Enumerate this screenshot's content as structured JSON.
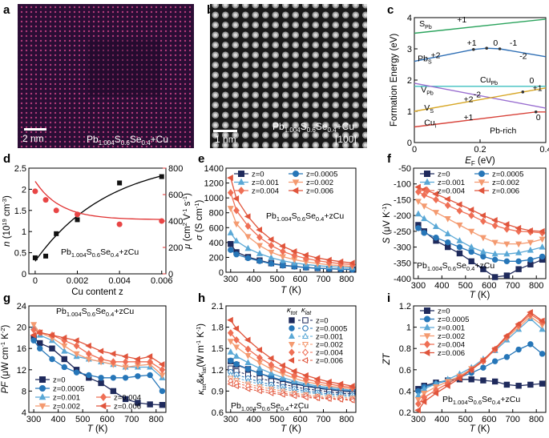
{
  "figure_panels": [
    "a",
    "b",
    "c",
    "d",
    "e",
    "f",
    "g",
    "h",
    "i"
  ],
  "images": {
    "a": {
      "formula_main": "Pb",
      "sub1": "1.004",
      "s": "S",
      "sub2": "0.6",
      "se": "Se",
      "sub3": "0.4",
      "suffix": "+Cu",
      "scale": "2 nm"
    },
    "b": {
      "formula_main": "Pb",
      "sub1": "1.004",
      "s": "S",
      "sub2": "0.6",
      "se": "Se",
      "sub3": "0.4",
      "suffix": "+Cu",
      "direction": "[100]",
      "scale": "1 nm"
    }
  },
  "series_colors": [
    "#1f2a5c",
    "#2676b8",
    "#5aa8d6",
    "#f49a70",
    "#ef6f55",
    "#e0553c"
  ],
  "series_names": [
    "z=0",
    "z=0.0005",
    "z=0.001",
    "z=0.002",
    "z=0.004",
    "z=0.006"
  ],
  "legend_headers": {
    "kappa_tot": "κtot",
    "kappa_lat": "κlat"
  },
  "compound_label": "Pb1.004S0.6Se0.4+zCu",
  "chart_data": [
    {
      "panel": "c",
      "type": "line",
      "title": "",
      "xlabel": "EF (eV)",
      "ylabel": "Formation Energy (eV)",
      "xlim": [
        0,
        0.4
      ],
      "ylim": [
        0,
        4
      ],
      "xticks": [
        0,
        0.2,
        0.4
      ],
      "yticks": [
        0,
        1,
        2,
        3,
        4
      ],
      "annotation": "Pb-rich",
      "series": [
        {
          "name": "SPb",
          "color": "#2aa35c",
          "x": [
            0,
            0.4
          ],
          "y": [
            3.5,
            3.95
          ],
          "charges": [
            "+1"
          ]
        },
        {
          "name": "PbS",
          "color": "#2f6fb5",
          "x": [
            0,
            0.18,
            0.22,
            0.26,
            0.4
          ],
          "y": [
            2.6,
            2.98,
            3.02,
            3.0,
            2.75
          ],
          "charges": [
            "+2",
            "+1",
            "0",
            "-1",
            "-2"
          ]
        },
        {
          "name": "CuPb",
          "color": "#3fc0c0",
          "x": [
            0,
            0.4
          ],
          "y": [
            1.8,
            1.8
          ],
          "charges": [
            "0"
          ]
        },
        {
          "name": "VPb",
          "color": "#9a6fd0",
          "x": [
            0,
            0.4
          ],
          "y": [
            1.9,
            1.1
          ],
          "charges": [
            "-2"
          ]
        },
        {
          "name": "VS",
          "color": "#d8a829",
          "x": [
            0,
            0.4
          ],
          "y": [
            1.0,
            1.75
          ],
          "charges": [
            "+2",
            "+1"
          ]
        },
        {
          "name": "Cui",
          "color": "#d8433a",
          "x": [
            0,
            0.37,
            0.4
          ],
          "y": [
            0.5,
            0.98,
            0.98
          ],
          "charges": [
            "+1",
            "0"
          ]
        }
      ]
    },
    {
      "panel": "d",
      "type": "scatter",
      "xlabel": "Cu content z",
      "ylabel": "n (10^19 cm^-3)",
      "ylabel_right": "μ (cm^2 V^-1 s^-1)",
      "xlim": [
        -0.0003,
        0.0062
      ],
      "ylim": [
        0,
        2.5
      ],
      "ylim_right": [
        0,
        800
      ],
      "xticks": [
        0,
        0.002,
        0.004,
        0.006
      ],
      "yticks": [
        0,
        0.5,
        1.0,
        1.5,
        2.0,
        2.5
      ],
      "yticks_right": [
        0,
        200,
        400,
        600,
        800
      ],
      "x": [
        0,
        0.0005,
        0.001,
        0.002,
        0.004,
        0.006
      ],
      "n": [
        0.38,
        0.42,
        0.95,
        1.28,
        2.15,
        2.3
      ],
      "mu": [
        625,
        560,
        480,
        450,
        375,
        400
      ]
    },
    {
      "panel": "e",
      "type": "line",
      "xlabel": "T (K)",
      "ylabel": "σ (S cm^-1)",
      "xlim": [
        280,
        840
      ],
      "ylim": [
        0,
        1400
      ],
      "xticks": [
        300,
        400,
        500,
        600,
        700,
        800
      ],
      "yticks": [
        0,
        200,
        400,
        600,
        800,
        1000,
        1200,
        1400
      ],
      "x": [
        300,
        325,
        375,
        425,
        475,
        525,
        575,
        625,
        675,
        725,
        775,
        825
      ],
      "series": [
        {
          "name": "z=0",
          "values": [
            380,
            270,
            205,
            160,
            120,
            95,
            80,
            65,
            55,
            48,
            42,
            38
          ]
        },
        {
          "name": "z=0.0005",
          "values": [
            300,
            240,
            190,
            150,
            115,
            90,
            75,
            62,
            53,
            46,
            40,
            36
          ]
        },
        {
          "name": "z=0.001",
          "values": [
            530,
            420,
            320,
            250,
            195,
            155,
            125,
            105,
            88,
            76,
            67,
            60
          ]
        },
        {
          "name": "z=0.002",
          "values": [
            860,
            650,
            480,
            360,
            270,
            210,
            170,
            140,
            118,
            100,
            88,
            78
          ]
        },
        {
          "name": "z=0.004",
          "values": [
            1070,
            830,
            620,
            470,
            360,
            280,
            225,
            185,
            155,
            132,
            115,
            102
          ]
        },
        {
          "name": "z=0.006",
          "values": [
            1270,
            990,
            750,
            570,
            440,
            350,
            280,
            230,
            192,
            165,
            142,
            125
          ]
        }
      ]
    },
    {
      "panel": "f",
      "type": "line",
      "xlabel": "T (K)",
      "ylabel": "S (μV K^-1)",
      "xlim": [
        280,
        840
      ],
      "ylim": [
        -400,
        -50
      ],
      "xticks": [
        300,
        400,
        500,
        600,
        700,
        800
      ],
      "yticks": [
        -400,
        -350,
        -300,
        -250,
        -200,
        -150,
        -100,
        -50
      ],
      "x": [
        300,
        325,
        375,
        425,
        475,
        525,
        575,
        625,
        675,
        725,
        775,
        825
      ],
      "series": [
        {
          "name": "z=0",
          "values": [
            -230,
            -250,
            -280,
            -300,
            -320,
            -345,
            -370,
            -395,
            -390,
            -370,
            -355,
            -340
          ]
        },
        {
          "name": "z=0.0005",
          "values": [
            -240,
            -255,
            -270,
            -285,
            -300,
            -315,
            -330,
            -340,
            -345,
            -345,
            -340,
            -330
          ]
        },
        {
          "name": "z=0.001",
          "values": [
            -195,
            -210,
            -235,
            -258,
            -280,
            -300,
            -315,
            -322,
            -322,
            -318,
            -310,
            -300
          ]
        },
        {
          "name": "z=0.002",
          "values": [
            -155,
            -170,
            -190,
            -210,
            -230,
            -250,
            -270,
            -285,
            -290,
            -290,
            -285,
            -275
          ]
        },
        {
          "name": "z=0.004",
          "values": [
            -125,
            -135,
            -150,
            -168,
            -185,
            -200,
            -218,
            -232,
            -243,
            -250,
            -252,
            -255
          ]
        },
        {
          "name": "z=0.006",
          "values": [
            -110,
            -118,
            -132,
            -148,
            -165,
            -182,
            -200,
            -215,
            -228,
            -240,
            -248,
            -250
          ]
        }
      ]
    },
    {
      "panel": "g",
      "type": "line",
      "xlabel": "T (K)",
      "ylabel": "PF (μW cm^-1 K^-2)",
      "xlim": [
        280,
        840
      ],
      "ylim": [
        4,
        24
      ],
      "xticks": [
        300,
        400,
        500,
        600,
        700,
        800
      ],
      "yticks": [
        4,
        8,
        12,
        16,
        20,
        24
      ],
      "x": [
        300,
        325,
        375,
        425,
        475,
        525,
        575,
        625,
        675,
        725,
        775,
        825
      ],
      "series": [
        {
          "name": "z=0",
          "values": [
            18.0,
            17.0,
            16.0,
            14.0,
            12.0,
            10.5,
            9.5,
            8.0,
            6.5,
            5.8,
            5.5,
            5.4
          ]
        },
        {
          "name": "z=0.0005",
          "values": [
            17.5,
            16.0,
            14.0,
            12.5,
            11.5,
            11.0,
            10.5,
            10.5,
            10.5,
            10.8,
            11.0,
            8.0
          ]
        },
        {
          "name": "z=0.001",
          "values": [
            20.0,
            18.5,
            17.5,
            15.5,
            14.5,
            14.0,
            13.5,
            13.0,
            12.5,
            12.5,
            12.5,
            10.5
          ]
        },
        {
          "name": "z=0.002",
          "values": [
            20.5,
            19.0,
            18.0,
            16.5,
            15.0,
            14.0,
            13.5,
            13.0,
            12.5,
            12.8,
            13.0,
            11.0
          ]
        },
        {
          "name": "z=0.004",
          "values": [
            19.5,
            19.0,
            18.5,
            17.5,
            16.5,
            15.0,
            14.0,
            13.5,
            13.5,
            13.5,
            13.5,
            12.0
          ]
        },
        {
          "name": "z=0.006",
          "values": [
            18.5,
            19.0,
            18.5,
            18.0,
            17.5,
            16.5,
            15.5,
            15.0,
            14.5,
            14.0,
            14.5,
            13.0
          ]
        }
      ]
    },
    {
      "panel": "h",
      "type": "line",
      "xlabel": "T (K)",
      "ylabel": "κtot & κlat (W m^-1 K^-1)",
      "xlim": [
        280,
        840
      ],
      "ylim": [
        0.6,
        2.1
      ],
      "xticks": [
        300,
        400,
        500,
        600,
        700,
        800
      ],
      "yticks": [
        0.6,
        0.9,
        1.2,
        1.5,
        1.8,
        2.1
      ],
      "x": [
        300,
        325,
        375,
        425,
        475,
        525,
        575,
        625,
        675,
        725,
        775,
        825
      ],
      "series_tot": [
        {
          "name": "z=0",
          "values": [
            1.32,
            1.27,
            1.21,
            1.15,
            1.09,
            1.04,
            1.0,
            0.97,
            0.94,
            0.92,
            0.9,
            0.89
          ]
        },
        {
          "name": "z=0.0005",
          "values": [
            1.33,
            1.28,
            1.21,
            1.15,
            1.1,
            1.05,
            1.01,
            0.98,
            0.95,
            0.93,
            0.91,
            0.9
          ]
        },
        {
          "name": "z=0.001",
          "values": [
            1.45,
            1.39,
            1.3,
            1.22,
            1.15,
            1.09,
            1.04,
            1.0,
            0.97,
            0.95,
            0.93,
            0.91
          ]
        },
        {
          "name": "z=0.002",
          "values": [
            1.6,
            1.52,
            1.4,
            1.3,
            1.21,
            1.14,
            1.08,
            1.03,
            1.0,
            0.97,
            0.95,
            0.93
          ]
        },
        {
          "name": "z=0.004",
          "values": [
            1.72,
            1.62,
            1.49,
            1.37,
            1.27,
            1.19,
            1.12,
            1.07,
            1.03,
            1.0,
            0.97,
            0.95
          ]
        },
        {
          "name": "z=0.006",
          "values": [
            1.9,
            1.78,
            1.62,
            1.48,
            1.36,
            1.26,
            1.18,
            1.12,
            1.07,
            1.03,
            1.0,
            0.97
          ]
        }
      ],
      "series_lat": [
        {
          "name": "z=0",
          "values": [
            1.22,
            1.18,
            1.13,
            1.08,
            1.04,
            1.0,
            0.96,
            0.93,
            0.91,
            0.89,
            0.87,
            0.86
          ]
        },
        {
          "name": "z=0.0005",
          "values": [
            1.17,
            1.13,
            1.08,
            1.03,
            0.99,
            0.96,
            0.93,
            0.9,
            0.88,
            0.86,
            0.85,
            0.84
          ]
        },
        {
          "name": "z=0.001",
          "values": [
            1.13,
            1.09,
            1.04,
            1.0,
            0.96,
            0.93,
            0.9,
            0.88,
            0.86,
            0.84,
            0.83,
            0.82
          ]
        },
        {
          "name": "z=0.002",
          "values": [
            1.08,
            1.05,
            1.0,
            0.96,
            0.93,
            0.9,
            0.87,
            0.85,
            0.83,
            0.82,
            0.81,
            0.8
          ]
        },
        {
          "name": "z=0.004",
          "values": [
            1.04,
            1.01,
            0.97,
            0.93,
            0.9,
            0.87,
            0.85,
            0.83,
            0.81,
            0.8,
            0.79,
            0.78
          ]
        },
        {
          "name": "z=0.006",
          "values": [
            1.0,
            0.97,
            0.93,
            0.9,
            0.87,
            0.85,
            0.83,
            0.81,
            0.8,
            0.79,
            0.78,
            0.77
          ]
        }
      ]
    },
    {
      "panel": "i",
      "type": "line",
      "xlabel": "T (K)",
      "ylabel": "ZT",
      "xlim": [
        280,
        840
      ],
      "ylim": [
        0.2,
        1.2
      ],
      "xticks": [
        300,
        400,
        500,
        600,
        700,
        800
      ],
      "yticks": [
        0.2,
        0.4,
        0.6,
        0.8,
        1.0,
        1.2
      ],
      "x": [
        300,
        325,
        375,
        425,
        475,
        525,
        575,
        625,
        675,
        725,
        775,
        825
      ],
      "series": [
        {
          "name": "z=0",
          "values": [
            0.42,
            0.45,
            0.48,
            0.5,
            0.51,
            0.51,
            0.5,
            0.49,
            0.46,
            0.45,
            0.46,
            0.47
          ]
        },
        {
          "name": "z=0.0005",
          "values": [
            0.4,
            0.44,
            0.47,
            0.5,
            0.53,
            0.57,
            0.62,
            0.68,
            0.72,
            0.79,
            0.84,
            0.75
          ]
        },
        {
          "name": "z=0.001",
          "values": [
            0.36,
            0.42,
            0.47,
            0.51,
            0.56,
            0.62,
            0.7,
            0.78,
            0.88,
            0.98,
            1.08,
            0.98
          ]
        },
        {
          "name": "z=0.002",
          "values": [
            0.32,
            0.38,
            0.44,
            0.49,
            0.54,
            0.61,
            0.69,
            0.79,
            0.9,
            1.0,
            1.1,
            1.02
          ]
        },
        {
          "name": "z=0.004",
          "values": [
            0.28,
            0.34,
            0.41,
            0.47,
            0.53,
            0.6,
            0.68,
            0.79,
            0.91,
            1.02,
            1.12,
            1.05
          ]
        },
        {
          "name": "z=0.006",
          "values": [
            0.22,
            0.3,
            0.38,
            0.45,
            0.52,
            0.6,
            0.69,
            0.8,
            0.92,
            1.03,
            1.14,
            1.06
          ]
        }
      ]
    }
  ]
}
